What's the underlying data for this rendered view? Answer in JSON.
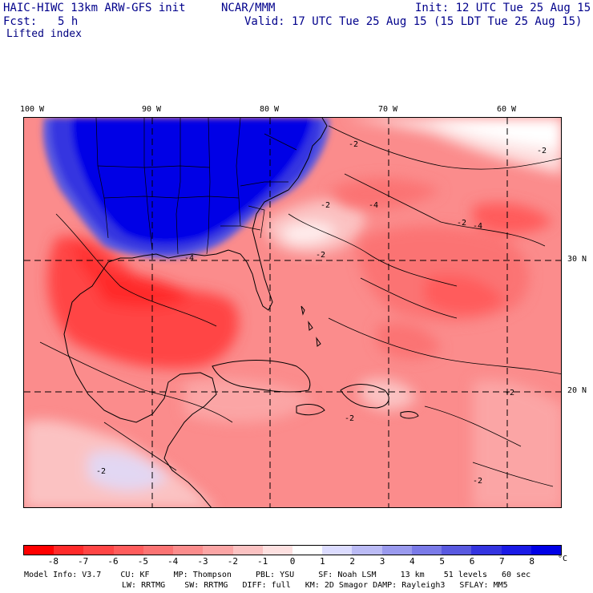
{
  "header": {
    "model_title": "HAIC-HIWC 13km ARW-GFS init",
    "org": "NCAR/MMM",
    "init_time": "Init: 12 UTC Tue 25 Aug 15",
    "forecast_label": "Fcst:",
    "forecast_hours": "5 h",
    "valid_time": "Valid: 17 UTC Tue 25 Aug 15 (15 LDT Tue 25 Aug 15)",
    "field_name": "Lifted index"
  },
  "map": {
    "lon_labels": [
      "100 W",
      "90 W",
      "80 W",
      "70 W",
      "60 W"
    ],
    "lat_labels": [
      "30 N",
      "20 N"
    ],
    "contour_labels": [
      "-2",
      "-2",
      "-2",
      "-4",
      "-4",
      "-2",
      "-2",
      "-4",
      "-2",
      "-2",
      "-2",
      "-2"
    ]
  },
  "colorbar": {
    "ticks": [
      "-8",
      "-7",
      "-6",
      "-5",
      "-4",
      "-3",
      "-2",
      "-1",
      "0",
      "1",
      "2",
      "3",
      "4",
      "5",
      "6",
      "7",
      "8"
    ],
    "unit": "°C",
    "colors": [
      "#ff0000",
      "#ff2a2a",
      "#ff4545",
      "#ff5c5c",
      "#fb7373",
      "#fb8c8c",
      "#fba5a5",
      "#fbc2c2",
      "#fde0e0",
      "#ffffff",
      "#dcdcff",
      "#bbbbf5",
      "#9a9aee",
      "#7a7ae8",
      "#5959e0",
      "#3434e0",
      "#1a1ae6",
      "#0000e6"
    ]
  },
  "footer": {
    "line1": "Model Info: V3.7    CU: KF     MP: Thompson     PBL: YSU     SF: Noah LSM     13 km    51 levels   60 sec",
    "line2": "LW: RRTMG    SW: RRTMG   DIFF: full   KM: 2D Smagor DAMP: Rayleigh3   SFLAY: MM5"
  }
}
